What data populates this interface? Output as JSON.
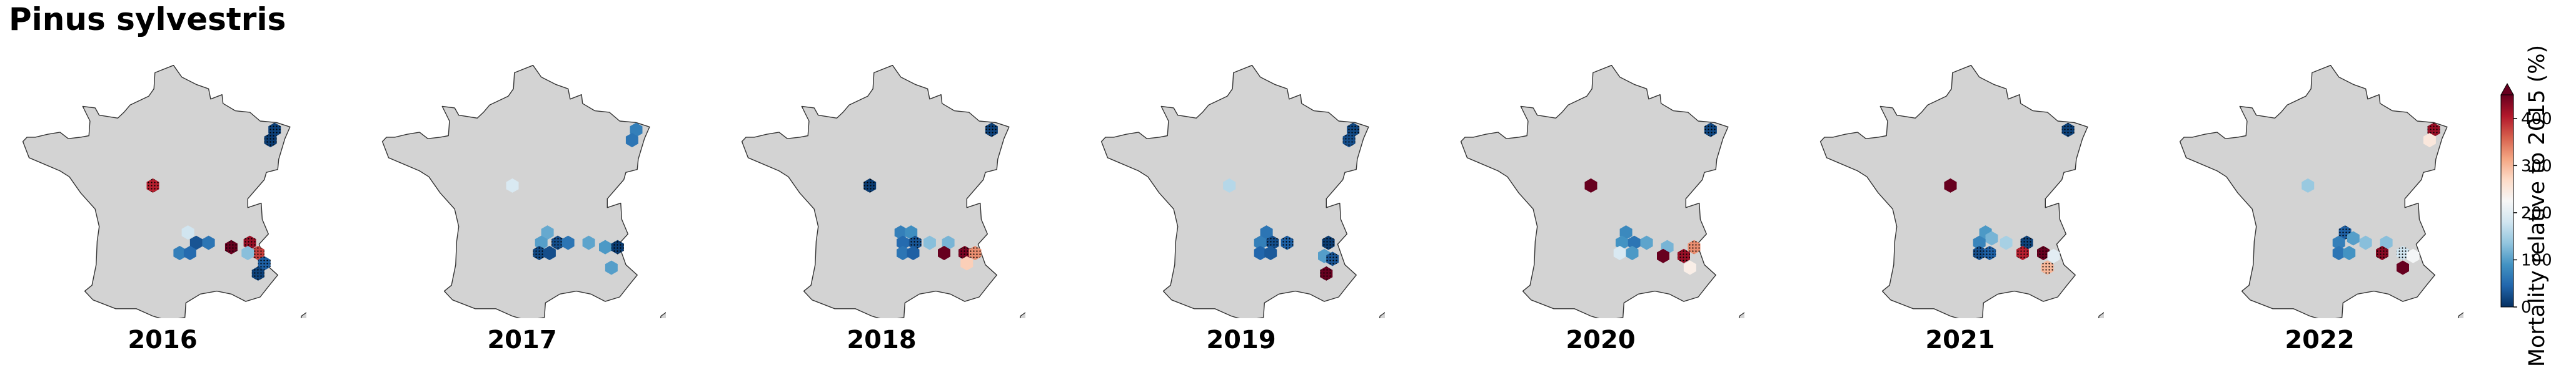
{
  "title": "Pinus sylvestris",
  "colors": {
    "land": "#d3d3d3",
    "coast": "#333333",
    "hatch": "#000000",
    "scale": [
      "#053061",
      "#2166ac",
      "#4393c3",
      "#92c5de",
      "#d1e5f0",
      "#f7f7f7",
      "#fddbc7",
      "#f4a582",
      "#d6604d",
      "#b2182b",
      "#67001f"
    ]
  },
  "colorbar": {
    "label": "Mortality relative to 2015 (%)",
    "ticks": [
      {
        "value": 0,
        "label": "0"
      },
      {
        "value": 100,
        "label": "100"
      },
      {
        "value": 200,
        "label": "200"
      },
      {
        "value": 300,
        "label": "300"
      },
      {
        "value": 400,
        "label": "400"
      }
    ],
    "min": 0,
    "max": 450,
    "extend": "max"
  },
  "chart_data": {
    "type": "heatmap",
    "description_unit": "Mortality relative to 2015 (%)",
    "panels": [
      {
        "year": "2016",
        "cells": [
          {
            "lon": 7.4,
            "lat": 48.9,
            "value": 15,
            "hatched": true
          },
          {
            "lon": 7.2,
            "lat": 48.55,
            "value": 10,
            "hatched": true
          },
          {
            "lon": 1.5,
            "lat": 47.0,
            "value": 400,
            "hatched": true
          },
          {
            "lon": 3.2,
            "lat": 45.4,
            "value": 180,
            "hatched": false
          },
          {
            "lon": 3.6,
            "lat": 45.05,
            "value": 30,
            "hatched": false
          },
          {
            "lon": 4.2,
            "lat": 45.05,
            "value": 60,
            "hatched": false
          },
          {
            "lon": 2.8,
            "lat": 44.7,
            "value": 70,
            "hatched": false
          },
          {
            "lon": 3.3,
            "lat": 44.7,
            "value": 50,
            "hatched": false
          },
          {
            "lon": 5.3,
            "lat": 44.9,
            "value": 450,
            "hatched": true
          },
          {
            "lon": 6.2,
            "lat": 45.05,
            "value": 420,
            "hatched": true
          },
          {
            "lon": 6.6,
            "lat": 44.7,
            "value": 380,
            "hatched": true
          },
          {
            "lon": 6.1,
            "lat": 44.7,
            "value": 130,
            "hatched": false
          },
          {
            "lon": 6.9,
            "lat": 44.35,
            "value": 40,
            "hatched": true
          },
          {
            "lon": 6.6,
            "lat": 44.0,
            "value": 15,
            "hatched": true
          }
        ]
      },
      {
        "year": "2017",
        "cells": [
          {
            "lon": 7.5,
            "lat": 48.9,
            "value": 70,
            "hatched": false
          },
          {
            "lon": 7.3,
            "lat": 48.55,
            "value": 60,
            "hatched": false
          },
          {
            "lon": 1.5,
            "lat": 47.0,
            "value": 190,
            "hatched": false
          },
          {
            "lon": 3.2,
            "lat": 45.4,
            "value": 110,
            "hatched": false
          },
          {
            "lon": 2.9,
            "lat": 45.05,
            "value": 100,
            "hatched": false
          },
          {
            "lon": 3.7,
            "lat": 45.05,
            "value": 25,
            "hatched": true
          },
          {
            "lon": 4.2,
            "lat": 45.05,
            "value": 60,
            "hatched": false
          },
          {
            "lon": 2.8,
            "lat": 44.7,
            "value": 20,
            "hatched": true
          },
          {
            "lon": 3.3,
            "lat": 44.7,
            "value": 25,
            "hatched": false
          },
          {
            "lon": 5.2,
            "lat": 45.05,
            "value": 105,
            "hatched": false
          },
          {
            "lon": 6.0,
            "lat": 44.9,
            "value": 95,
            "hatched": false
          },
          {
            "lon": 6.6,
            "lat": 44.9,
            "value": 10,
            "hatched": true
          },
          {
            "lon": 6.3,
            "lat": 44.2,
            "value": 100,
            "hatched": false
          }
        ]
      },
      {
        "year": "2018",
        "cells": [
          {
            "lon": 7.3,
            "lat": 48.9,
            "value": 15,
            "hatched": true
          },
          {
            "lon": 1.4,
            "lat": 47.0,
            "value": 10,
            "hatched": true
          },
          {
            "lon": 2.9,
            "lat": 45.4,
            "value": 70,
            "hatched": false
          },
          {
            "lon": 3.4,
            "lat": 45.4,
            "value": 85,
            "hatched": false
          },
          {
            "lon": 3.0,
            "lat": 45.05,
            "value": 50,
            "hatched": false
          },
          {
            "lon": 3.6,
            "lat": 45.05,
            "value": 30,
            "hatched": true
          },
          {
            "lon": 4.3,
            "lat": 45.05,
            "value": 130,
            "hatched": false
          },
          {
            "lon": 3.0,
            "lat": 44.7,
            "value": 60,
            "hatched": false
          },
          {
            "lon": 3.5,
            "lat": 44.7,
            "value": 40,
            "hatched": false
          },
          {
            "lon": 5.2,
            "lat": 45.05,
            "value": 120,
            "hatched": false
          },
          {
            "lon": 5.0,
            "lat": 44.7,
            "value": 450,
            "hatched": false
          },
          {
            "lon": 6.0,
            "lat": 44.7,
            "value": 440,
            "hatched": true
          },
          {
            "lon": 6.5,
            "lat": 44.7,
            "value": 330,
            "hatched": true
          },
          {
            "lon": 6.1,
            "lat": 44.35,
            "value": 280,
            "hatched": false
          }
        ]
      },
      {
        "year": "2019",
        "cells": [
          {
            "lon": 7.4,
            "lat": 48.9,
            "value": 20,
            "hatched": true
          },
          {
            "lon": 7.2,
            "lat": 48.55,
            "value": 25,
            "hatched": true
          },
          {
            "lon": 1.4,
            "lat": 47.0,
            "value": 160,
            "hatched": false
          },
          {
            "lon": 3.2,
            "lat": 45.4,
            "value": 60,
            "hatched": false
          },
          {
            "lon": 2.9,
            "lat": 45.05,
            "value": 70,
            "hatched": false
          },
          {
            "lon": 3.5,
            "lat": 45.05,
            "value": 25,
            "hatched": true
          },
          {
            "lon": 4.2,
            "lat": 45.05,
            "value": 40,
            "hatched": true
          },
          {
            "lon": 2.9,
            "lat": 44.7,
            "value": 45,
            "hatched": false
          },
          {
            "lon": 3.4,
            "lat": 44.7,
            "value": 35,
            "hatched": false
          },
          {
            "lon": 6.2,
            "lat": 45.05,
            "value": 10,
            "hatched": true
          },
          {
            "lon": 6.0,
            "lat": 44.6,
            "value": 100,
            "hatched": false
          },
          {
            "lon": 6.4,
            "lat": 44.5,
            "value": 30,
            "hatched": true
          },
          {
            "lon": 6.1,
            "lat": 44.0,
            "value": 450,
            "hatched": true
          }
        ]
      },
      {
        "year": "2020",
        "cells": [
          {
            "lon": 7.3,
            "lat": 48.9,
            "value": 20,
            "hatched": true
          },
          {
            "lon": 1.5,
            "lat": 47.0,
            "value": 450,
            "hatched": false
          },
          {
            "lon": 3.2,
            "lat": 45.4,
            "value": 80,
            "hatched": false
          },
          {
            "lon": 3.0,
            "lat": 45.05,
            "value": 90,
            "hatched": false
          },
          {
            "lon": 3.6,
            "lat": 45.05,
            "value": 60,
            "hatched": false
          },
          {
            "lon": 4.2,
            "lat": 45.05,
            "value": 105,
            "hatched": false
          },
          {
            "lon": 2.9,
            "lat": 44.7,
            "value": 190,
            "hatched": false
          },
          {
            "lon": 3.5,
            "lat": 44.7,
            "value": 95,
            "hatched": false
          },
          {
            "lon": 5.2,
            "lat": 44.9,
            "value": 120,
            "hatched": false
          },
          {
            "lon": 5.0,
            "lat": 44.6,
            "value": 450,
            "hatched": false
          },
          {
            "lon": 6.0,
            "lat": 44.6,
            "value": 420,
            "hatched": true
          },
          {
            "lon": 6.5,
            "lat": 44.9,
            "value": 330,
            "hatched": true
          },
          {
            "lon": 6.3,
            "lat": 44.2,
            "value": 240,
            "hatched": false
          }
        ]
      },
      {
        "year": "2021",
        "cells": [
          {
            "lon": 7.2,
            "lat": 48.9,
            "value": 15,
            "hatched": true
          },
          {
            "lon": 1.5,
            "lat": 47.0,
            "value": 450,
            "hatched": false
          },
          {
            "lon": 3.2,
            "lat": 45.4,
            "value": 95,
            "hatched": false
          },
          {
            "lon": 3.5,
            "lat": 45.2,
            "value": 120,
            "hatched": false
          },
          {
            "lon": 2.9,
            "lat": 45.05,
            "value": 75,
            "hatched": false
          },
          {
            "lon": 4.2,
            "lat": 45.05,
            "value": 150,
            "hatched": false
          },
          {
            "lon": 2.9,
            "lat": 44.7,
            "value": 25,
            "hatched": true
          },
          {
            "lon": 3.4,
            "lat": 44.7,
            "value": 40,
            "hatched": true
          },
          {
            "lon": 5.2,
            "lat": 45.05,
            "value": 15,
            "hatched": true
          },
          {
            "lon": 5.0,
            "lat": 44.7,
            "value": 400,
            "hatched": true
          },
          {
            "lon": 6.0,
            "lat": 44.7,
            "value": 450,
            "hatched": true
          },
          {
            "lon": 6.5,
            "lat": 44.6,
            "value": 200,
            "hatched": false
          },
          {
            "lon": 6.2,
            "lat": 44.2,
            "value": 300,
            "hatched": true
          }
        ]
      },
      {
        "year": "2022",
        "cells": [
          {
            "lon": 7.5,
            "lat": 48.9,
            "value": 420,
            "hatched": true
          },
          {
            "lon": 7.3,
            "lat": 48.55,
            "value": 250,
            "hatched": false
          },
          {
            "lon": 1.4,
            "lat": 47.0,
            "value": 140,
            "hatched": false
          },
          {
            "lon": 3.2,
            "lat": 45.4,
            "value": 40,
            "hatched": true
          },
          {
            "lon": 3.6,
            "lat": 45.2,
            "value": 100,
            "hatched": false
          },
          {
            "lon": 2.9,
            "lat": 45.05,
            "value": 70,
            "hatched": false
          },
          {
            "lon": 4.2,
            "lat": 45.05,
            "value": 130,
            "hatched": false
          },
          {
            "lon": 2.9,
            "lat": 44.7,
            "value": 60,
            "hatched": false
          },
          {
            "lon": 3.4,
            "lat": 44.7,
            "value": 90,
            "hatched": false
          },
          {
            "lon": 5.2,
            "lat": 45.05,
            "value": 130,
            "hatched": false
          },
          {
            "lon": 5.0,
            "lat": 44.7,
            "value": 430,
            "hatched": true
          },
          {
            "lon": 6.0,
            "lat": 44.7,
            "value": 180,
            "hatched": true
          },
          {
            "lon": 6.5,
            "lat": 44.6,
            "value": 220,
            "hatched": false
          },
          {
            "lon": 6.0,
            "lat": 44.2,
            "value": 450,
            "hatched": false
          }
        ]
      }
    ]
  }
}
